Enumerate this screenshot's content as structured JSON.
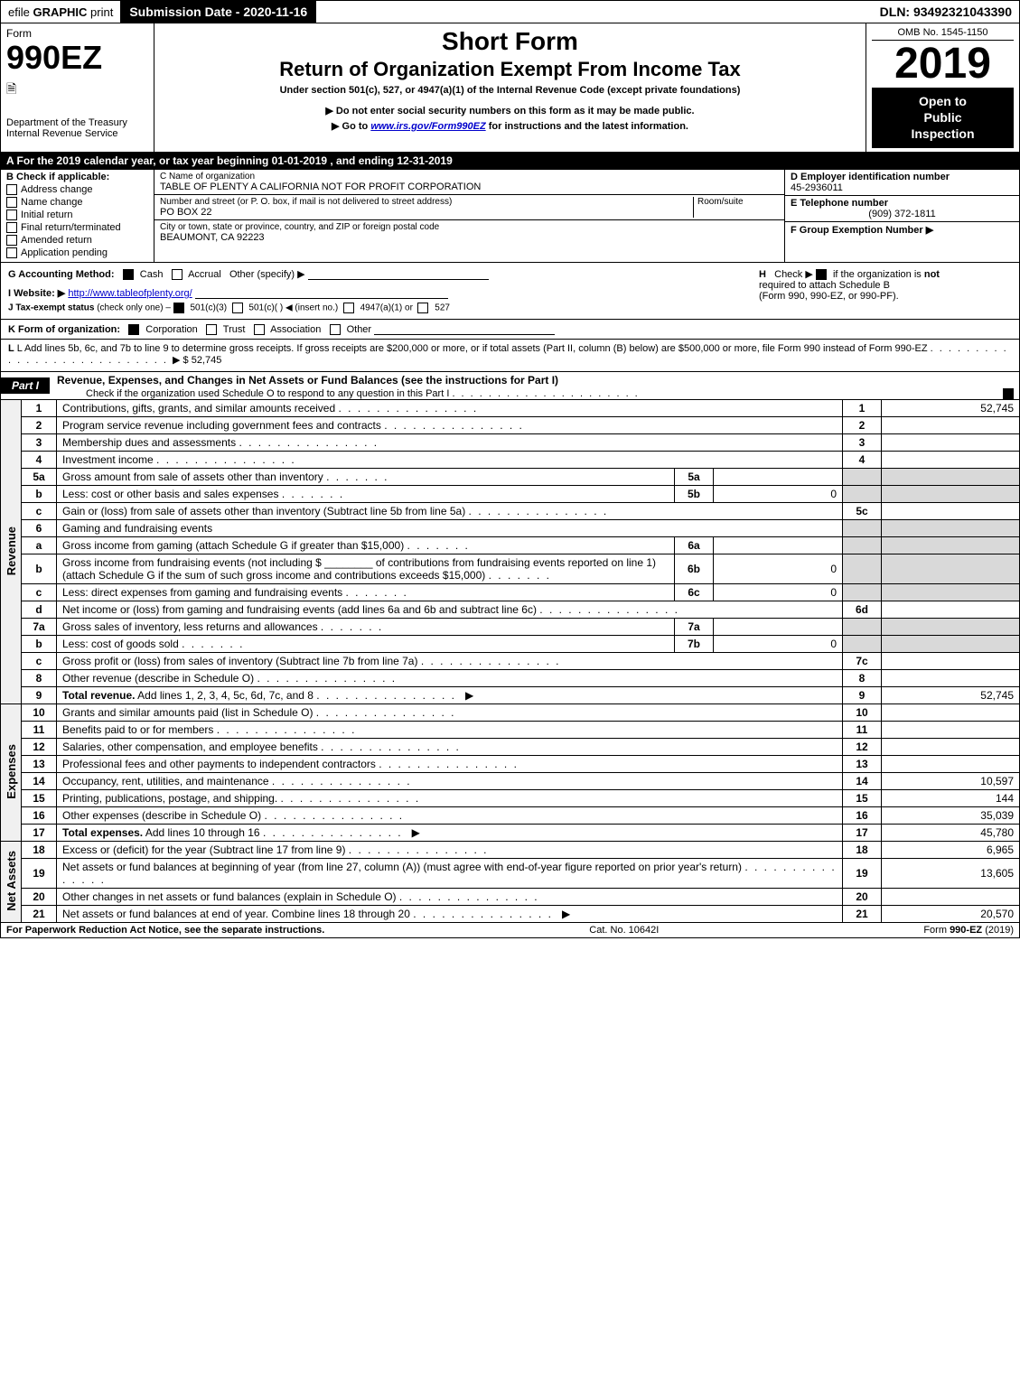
{
  "colors": {
    "black": "#000000",
    "white": "#ffffff",
    "shaded": "#d9d9d9",
    "link": "#0000cc",
    "tab_bg": "#f0f0f0"
  },
  "top_bar": {
    "efile_prefix": "efile ",
    "efile_bold": "GRAPHIC ",
    "efile_suffix": "print",
    "submission_label": "Submission Date - 2020-11-16",
    "dln": "DLN: 93492321043390"
  },
  "header": {
    "form_label": "Form",
    "form_number": "990EZ",
    "treasury_icon": "🗎",
    "dept": "Department of the Treasury",
    "irs_line": "Internal Revenue Service",
    "short_form": "Short Form",
    "return_title": "Return of Organization Exempt From Income Tax",
    "under_section": "Under section 501(c), 527, or 4947(a)(1) of the Internal Revenue Code (except private foundations)",
    "do_not_enter": "▶ Do not enter social security numbers on this form as it may be made public.",
    "go_to_prefix": "▶ Go to ",
    "go_to_link": "www.irs.gov/Form990EZ",
    "go_to_suffix": " for instructions and the latest information.",
    "omb": "OMB No. 1545-1150",
    "tax_year": "2019",
    "open_public_1": "Open to",
    "open_public_2": "Public",
    "open_public_3": "Inspection"
  },
  "period": "A For the 2019 calendar year, or tax year beginning 01-01-2019 , and ending 12-31-2019",
  "section_b": {
    "header": "B Check if applicable:",
    "items": [
      "Address change",
      "Name change",
      "Initial return",
      "Final return/terminated",
      "Amended return",
      "Application pending"
    ]
  },
  "section_c": {
    "label_name": "C Name of organization",
    "org_name": "TABLE OF PLENTY A CALIFORNIA NOT FOR PROFIT CORPORATION",
    "label_street": "Number and street (or P. O. box, if mail is not delivered to street address)",
    "room_label": "Room/suite",
    "street": "PO BOX 22",
    "label_city": "City or town, state or province, country, and ZIP or foreign postal code",
    "city": "BEAUMONT, CA  92223"
  },
  "section_d": {
    "label": "D Employer identification number",
    "value": "45-2936011"
  },
  "section_e": {
    "label": "E Telephone number",
    "value": "(909) 372-1811"
  },
  "section_f": {
    "label": "F Group Exemption Number  ▶"
  },
  "section_g": {
    "prefix": "G Accounting Method:",
    "cash": "Cash",
    "accrual": "Accrual",
    "other": "Other (specify) ▶"
  },
  "section_h": {
    "prefix": "H",
    "text1": "Check ▶ ",
    "text2": " if the organization is ",
    "not": "not",
    "text3": " required to attach Schedule B",
    "text4": "(Form 990, 990-EZ, or 990-PF)."
  },
  "section_i": {
    "label": "I Website: ▶",
    "url": "http://www.tableofplenty.org/"
  },
  "section_j": {
    "prefix": "J Tax-exempt status ",
    "note": "(check only one) –",
    "opt1": "501(c)(3)",
    "opt2": "501(c)(  ) ◀ (insert no.)",
    "opt3": "4947(a)(1) or",
    "opt4": "527"
  },
  "section_k": {
    "prefix": "K Form of organization:",
    "corp": "Corporation",
    "trust": "Trust",
    "assoc": "Association",
    "other": "Other"
  },
  "section_l": {
    "text": "L Add lines 5b, 6c, and 7b to line 9 to determine gross receipts. If gross receipts are $200,000 or more, or if total assets (Part II, column (B) below) are $500,000 or more, file Form 990 instead of Form 990-EZ",
    "arrow": "▶ $",
    "amount": "52,745"
  },
  "part1": {
    "label": "Part I",
    "title": "Revenue, Expenses, and Changes in Net Assets or Fund Balances (see the instructions for Part I)",
    "check_note": "Check if the organization used Schedule O to respond to any question in this Part I"
  },
  "tabs": {
    "revenue": "Revenue",
    "expenses": "Expenses",
    "net_assets": "Net Assets"
  },
  "lines": {
    "revenue": [
      {
        "n": "1",
        "desc": "Contributions, gifts, grants, and similar amounts received",
        "box": "1",
        "val": "52,745"
      },
      {
        "n": "2",
        "desc": "Program service revenue including government fees and contracts",
        "box": "2",
        "val": ""
      },
      {
        "n": "3",
        "desc": "Membership dues and assessments",
        "box": "3",
        "val": ""
      },
      {
        "n": "4",
        "desc": "Investment income",
        "box": "4",
        "val": ""
      },
      {
        "n": "5a",
        "desc": "Gross amount from sale of assets other than inventory",
        "sub_box": "5a",
        "sub_val": ""
      },
      {
        "n": "b",
        "desc": "Less: cost or other basis and sales expenses",
        "sub_box": "5b",
        "sub_val": "0"
      },
      {
        "n": "c",
        "desc": "Gain or (loss) from sale of assets other than inventory (Subtract line 5b from line 5a)",
        "box": "5c",
        "val": ""
      },
      {
        "n": "6",
        "desc": "Gaming and fundraising events"
      },
      {
        "n": "a",
        "desc": "Gross income from gaming (attach Schedule G if greater than $15,000)",
        "sub_box": "6a",
        "sub_val": ""
      },
      {
        "n": "b",
        "desc": "Gross income from fundraising events (not including $ ________ of contributions from fundraising events reported on line 1) (attach Schedule G if the sum of such gross income and contributions exceeds $15,000)",
        "sub_box": "6b",
        "sub_val": "0"
      },
      {
        "n": "c",
        "desc": "Less: direct expenses from gaming and fundraising events",
        "sub_box": "6c",
        "sub_val": "0"
      },
      {
        "n": "d",
        "desc": "Net income or (loss) from gaming and fundraising events (add lines 6a and 6b and subtract line 6c)",
        "box": "6d",
        "val": ""
      },
      {
        "n": "7a",
        "desc": "Gross sales of inventory, less returns and allowances",
        "sub_box": "7a",
        "sub_val": ""
      },
      {
        "n": "b",
        "desc": "Less: cost of goods sold",
        "sub_box": "7b",
        "sub_val": "0"
      },
      {
        "n": "c",
        "desc": "Gross profit or (loss) from sales of inventory (Subtract line 7b from line 7a)",
        "box": "7c",
        "val": ""
      },
      {
        "n": "8",
        "desc": "Other revenue (describe in Schedule O)",
        "box": "8",
        "val": ""
      },
      {
        "n": "9",
        "desc": "Total revenue. Add lines 1, 2, 3, 4, 5c, 6d, 7c, and 8",
        "box": "9",
        "val": "52,745",
        "bold": true,
        "arrow": true
      }
    ],
    "expenses": [
      {
        "n": "10",
        "desc": "Grants and similar amounts paid (list in Schedule O)",
        "box": "10",
        "val": ""
      },
      {
        "n": "11",
        "desc": "Benefits paid to or for members",
        "box": "11",
        "val": ""
      },
      {
        "n": "12",
        "desc": "Salaries, other compensation, and employee benefits",
        "box": "12",
        "val": ""
      },
      {
        "n": "13",
        "desc": "Professional fees and other payments to independent contractors",
        "box": "13",
        "val": ""
      },
      {
        "n": "14",
        "desc": "Occupancy, rent, utilities, and maintenance",
        "box": "14",
        "val": "10,597"
      },
      {
        "n": "15",
        "desc": "Printing, publications, postage, and shipping.",
        "box": "15",
        "val": "144"
      },
      {
        "n": "16",
        "desc": "Other expenses (describe in Schedule O)",
        "box": "16",
        "val": "35,039"
      },
      {
        "n": "17",
        "desc": "Total expenses. Add lines 10 through 16",
        "box": "17",
        "val": "45,780",
        "bold": true,
        "arrow": true
      }
    ],
    "net_assets": [
      {
        "n": "18",
        "desc": "Excess or (deficit) for the year (Subtract line 17 from line 9)",
        "box": "18",
        "val": "6,965"
      },
      {
        "n": "19",
        "desc": "Net assets or fund balances at beginning of year (from line 27, column (A)) (must agree with end-of-year figure reported on prior year's return)",
        "box": "19",
        "val": "13,605"
      },
      {
        "n": "20",
        "desc": "Other changes in net assets or fund balances (explain in Schedule O)",
        "box": "20",
        "val": ""
      },
      {
        "n": "21",
        "desc": "Net assets or fund balances at end of year. Combine lines 18 through 20",
        "box": "21",
        "val": "20,570",
        "arrow": true
      }
    ]
  },
  "footer": {
    "left": "For Paperwork Reduction Act Notice, see the separate instructions.",
    "center": "Cat. No. 10642I",
    "right_prefix": "Form ",
    "right_bold": "990-EZ",
    "right_suffix": " (2019)"
  }
}
